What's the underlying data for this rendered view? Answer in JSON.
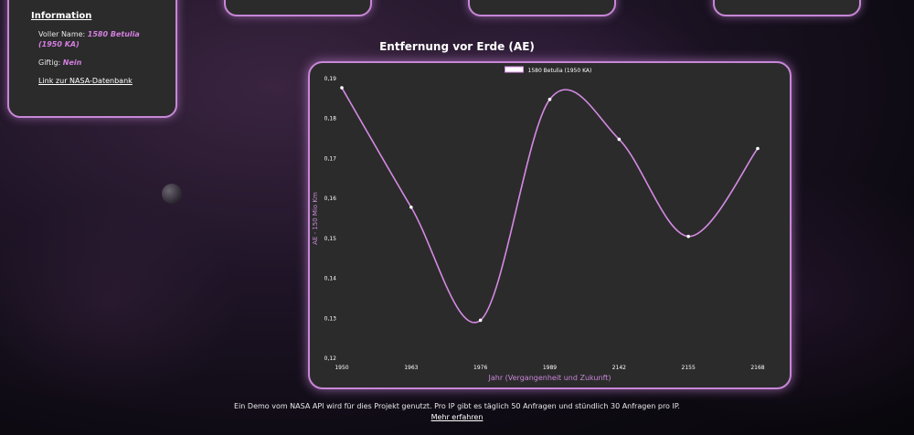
{
  "info": {
    "title": "Information",
    "full_name_label": "Voller Name:",
    "full_name_value": "1580 Betulia (1950 KA)",
    "toxic_label": "Giftig:",
    "toxic_value": "Nein",
    "link_text": "Link zur NASA-Datenbank"
  },
  "chart": {
    "heading": "Entfernung vor Erde (AE)"
  },
  "chart_data": {
    "type": "line",
    "title": "Entfernung vor Erde (AE)",
    "xlabel": "Jahr (Vergangenheit und Zukunft)",
    "ylabel": "AE - 150 Mio Km",
    "categories": [
      "1950",
      "1963",
      "1976",
      "1989",
      "2142",
      "2155",
      "2168"
    ],
    "series": [
      {
        "name": "1580 Betulia (1950 KA)",
        "values": [
          0.1877,
          0.1578,
          0.1295,
          0.1848,
          0.1748,
          0.1505,
          0.1725
        ]
      }
    ],
    "ylim": [
      0.12,
      0.19
    ],
    "yticks": [
      "0,12",
      "0,13",
      "0,14",
      "0,15",
      "0,16",
      "0,17",
      "0,18",
      "0,19"
    ],
    "grid": false,
    "legend": "top",
    "colors": {
      "line": "#d48ae3",
      "point": "#ffffff"
    }
  },
  "footer": {
    "text": "Ein Demo vom NASA API wird für dies Projekt genutzt. Pro IP gibt es täglich 50 Anfragen und stündlich 30 Anfragen pro IP.",
    "link": "Mehr erfahren"
  }
}
